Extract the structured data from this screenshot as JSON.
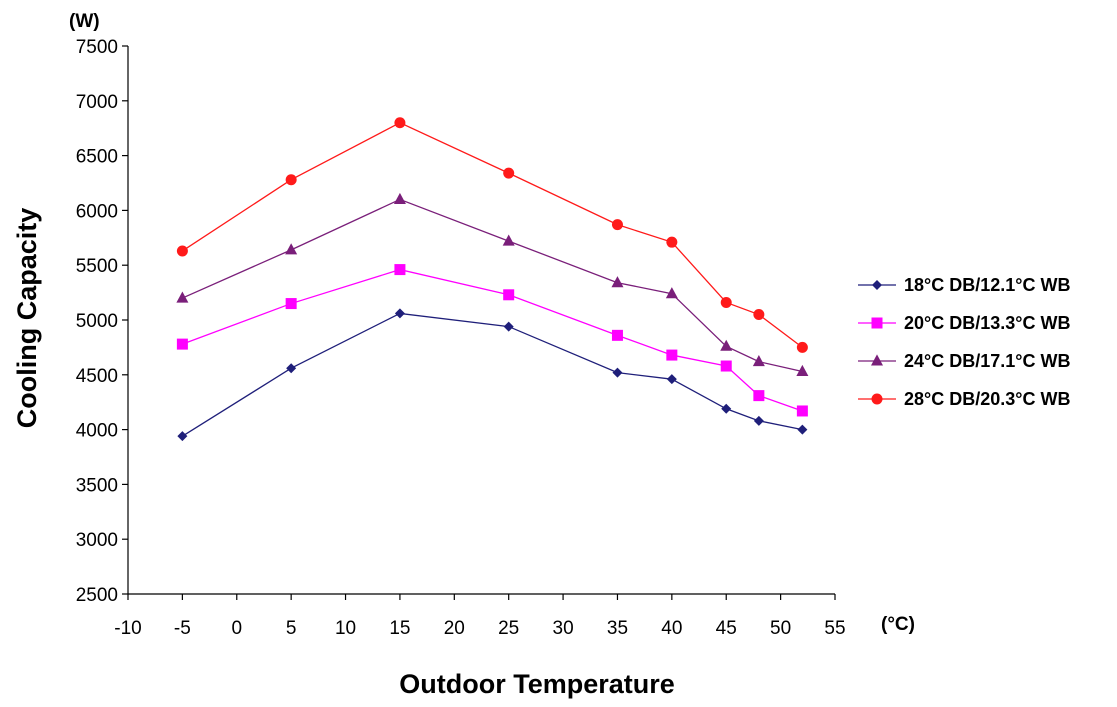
{
  "chart_data": {
    "type": "line",
    "title": "",
    "xlabel": "Outdoor Temperature",
    "ylabel": "Cooling Capacity",
    "x_unit": "(°C)",
    "y_unit": "(W)",
    "xlim": [
      -10,
      55
    ],
    "ylim": [
      2500,
      7500
    ],
    "x_ticks": [
      -10,
      -5,
      0,
      5,
      10,
      15,
      20,
      25,
      30,
      35,
      40,
      45,
      50,
      55
    ],
    "y_ticks": [
      2500,
      3000,
      3500,
      4000,
      4500,
      5000,
      5500,
      6000,
      6500,
      7000,
      7500
    ],
    "grid": false,
    "legend_position": "right",
    "x": [
      -5,
      5,
      15,
      25,
      35,
      40,
      45,
      48,
      52
    ],
    "series": [
      {
        "name": "18°C DB/12.1°C WB",
        "color": "#1f1f7a",
        "marker": "diamond",
        "values": [
          3940,
          4560,
          5060,
          4940,
          4520,
          4460,
          4190,
          4080,
          4000
        ]
      },
      {
        "name": "20°C DB/13.3°C WB",
        "color": "#ff00ff",
        "marker": "square",
        "values": [
          4780,
          5150,
          5460,
          5230,
          4860,
          4680,
          4580,
          4310,
          4170
        ]
      },
      {
        "name": "24°C DB/17.1°C WB",
        "color": "#7a1f7a",
        "marker": "triangle",
        "values": [
          5200,
          5640,
          6100,
          5720,
          5340,
          5240,
          4760,
          4620,
          4530
        ]
      },
      {
        "name": "28°C DB/20.3°C WB",
        "color": "#ff1a1a",
        "marker": "circle",
        "values": [
          5630,
          6280,
          6800,
          6340,
          5870,
          5710,
          5160,
          5050,
          4750
        ]
      }
    ]
  }
}
